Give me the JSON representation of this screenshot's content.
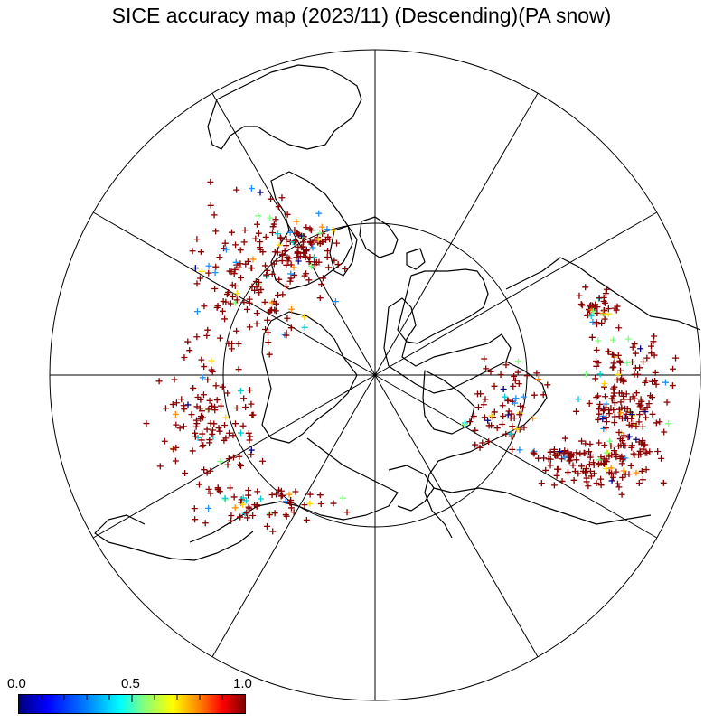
{
  "title": "SICE accuracy map (2023/11) (Descending)(PA snow)",
  "colorbar": {
    "ticks": [
      {
        "value": 0.0,
        "label": "0.0"
      },
      {
        "value": 0.5,
        "label": "0.5"
      },
      {
        "value": 1.0,
        "label": "1.0"
      }
    ],
    "range": [
      0.0,
      1.0
    ],
    "stops": [
      "#00007f",
      "#0000ff",
      "#0080ff",
      "#00ffff",
      "#80ff80",
      "#ffff00",
      "#ff8000",
      "#ff0000",
      "#7f0000"
    ]
  },
  "map": {
    "projection": "north-polar-stereographic",
    "graticule": {
      "meridian_spacing_deg": 30,
      "latitude_circles_deg": [
        60
      ]
    },
    "land_color": "#000000",
    "ocean_color": "#ffffff",
    "marker": "cross",
    "dominant_marker_color": "#8b0000",
    "other_marker_colors": [
      "#00008b",
      "#1e90ff",
      "#00ced1",
      "#7fff7f",
      "#ffd700",
      "#ff8c00"
    ]
  }
}
